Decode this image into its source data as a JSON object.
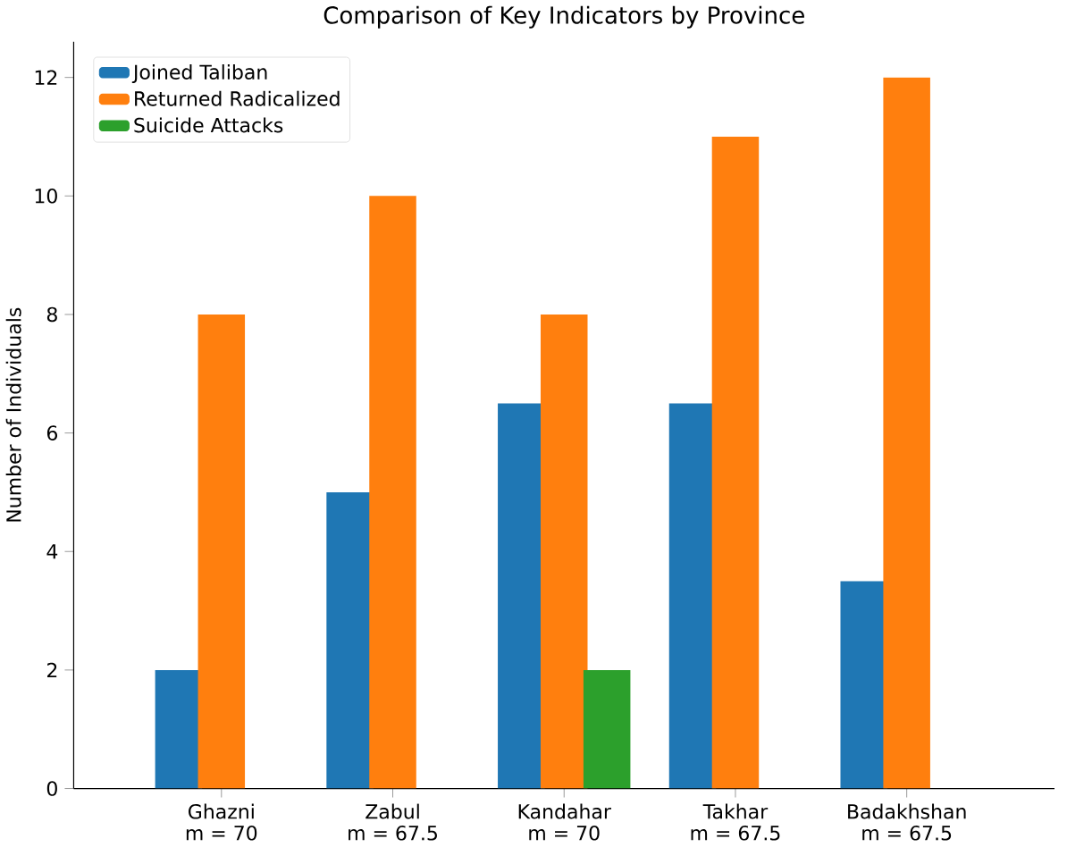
{
  "chart_data": {
    "type": "bar",
    "title": "Comparison of Key Indicators by Province",
    "ylabel": "Number of Individuals",
    "categories": [
      "Ghazni\nm = 70",
      "Zabul\nm = 67.5",
      "Kandahar\nm = 70",
      "Takhar\nm = 67.5",
      "Badakhshan\nm = 67.5"
    ],
    "series": [
      {
        "name": "Joined Taliban",
        "color": "#1f77b4",
        "values": [
          2,
          5,
          6.5,
          6.5,
          3.5
        ]
      },
      {
        "name": "Returned Radicalized",
        "color": "#ff7f0e",
        "values": [
          8,
          10,
          8,
          11,
          12
        ]
      },
      {
        "name": "Suicide Attacks",
        "color": "#2ca02c",
        "values": [
          0,
          0,
          2,
          0,
          0
        ]
      }
    ],
    "ylim": [
      0,
      12.6
    ],
    "yticks": [
      0,
      2,
      4,
      6,
      8,
      10,
      12
    ],
    "legend": "top left",
    "grid": false
  }
}
